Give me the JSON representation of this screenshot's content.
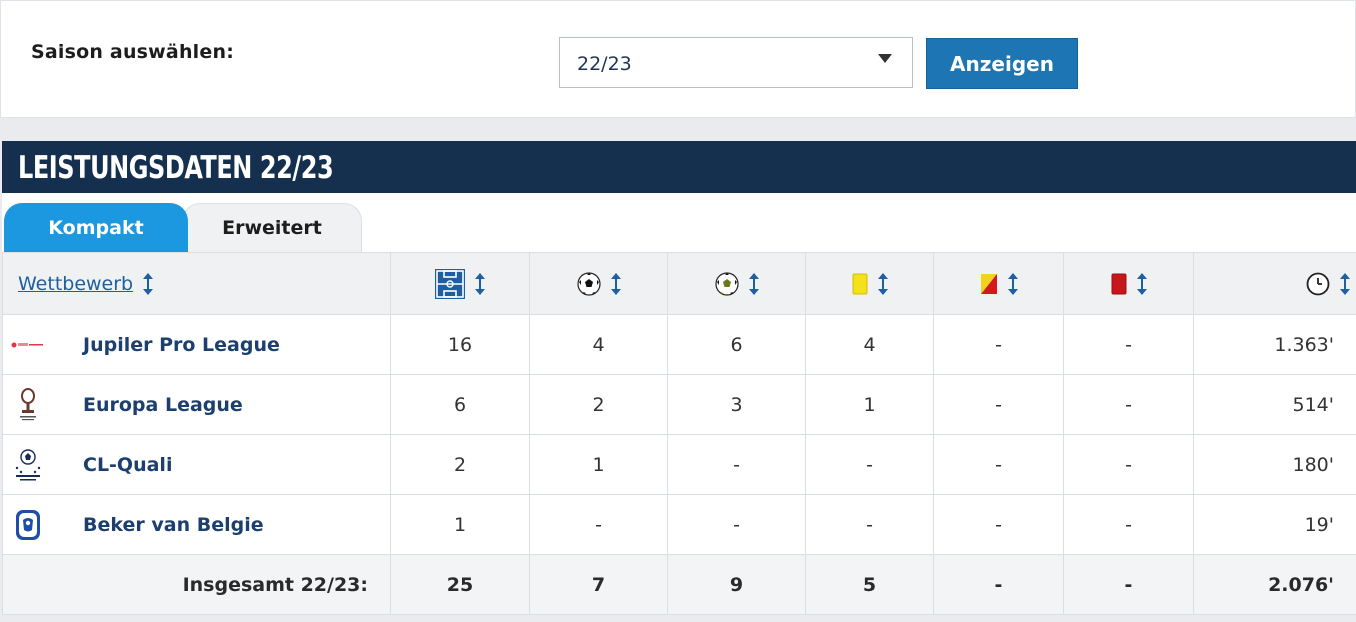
{
  "season": {
    "label": "Saison auswählen:",
    "selected": "22/23",
    "button": "Anzeigen"
  },
  "panel": {
    "title": "LEISTUNGSDATEN 22/23",
    "tabs": [
      {
        "label": "Kompakt",
        "active": true
      },
      {
        "label": "Erweitert",
        "active": false
      }
    ]
  },
  "table": {
    "competition_header": "Wettbewerb",
    "columns": [
      {
        "icon": "appearances-icon"
      },
      {
        "icon": "goals-icon"
      },
      {
        "icon": "assists-icon"
      },
      {
        "icon": "yellow-card-icon"
      },
      {
        "icon": "yellow-red-card-icon"
      },
      {
        "icon": "red-card-icon"
      },
      {
        "icon": "minutes-clock-icon"
      }
    ],
    "rows": [
      {
        "name": "Jupiler Pro League",
        "logo": "jupiler-pro-league-logo",
        "apps": "16",
        "goals": "4",
        "assists": "6",
        "yellow": "4",
        "yellowred": "-",
        "red": "-",
        "minutes": "1.363'"
      },
      {
        "name": "Europa League",
        "logo": "europa-league-logo",
        "apps": "6",
        "goals": "2",
        "assists": "3",
        "yellow": "1",
        "yellowred": "-",
        "red": "-",
        "minutes": "514'"
      },
      {
        "name": "CL-Quali",
        "logo": "champions-league-logo",
        "apps": "2",
        "goals": "1",
        "assists": "-",
        "yellow": "-",
        "yellowred": "-",
        "red": "-",
        "minutes": "180'"
      },
      {
        "name": "Beker van Belgie",
        "logo": "belgian-cup-logo",
        "apps": "1",
        "goals": "-",
        "assists": "-",
        "yellow": "-",
        "yellowred": "-",
        "red": "-",
        "minutes": "19'"
      }
    ],
    "total": {
      "label": "Insgesamt 22/23:",
      "apps": "25",
      "goals": "7",
      "assists": "9",
      "yellow": "5",
      "yellowred": "-",
      "red": "-",
      "minutes": "2.076'"
    }
  },
  "colors": {
    "header_bar": "#15304f",
    "tab_active": "#1b98e0",
    "button": "#1d75b3",
    "link": "#1d5fa0"
  }
}
